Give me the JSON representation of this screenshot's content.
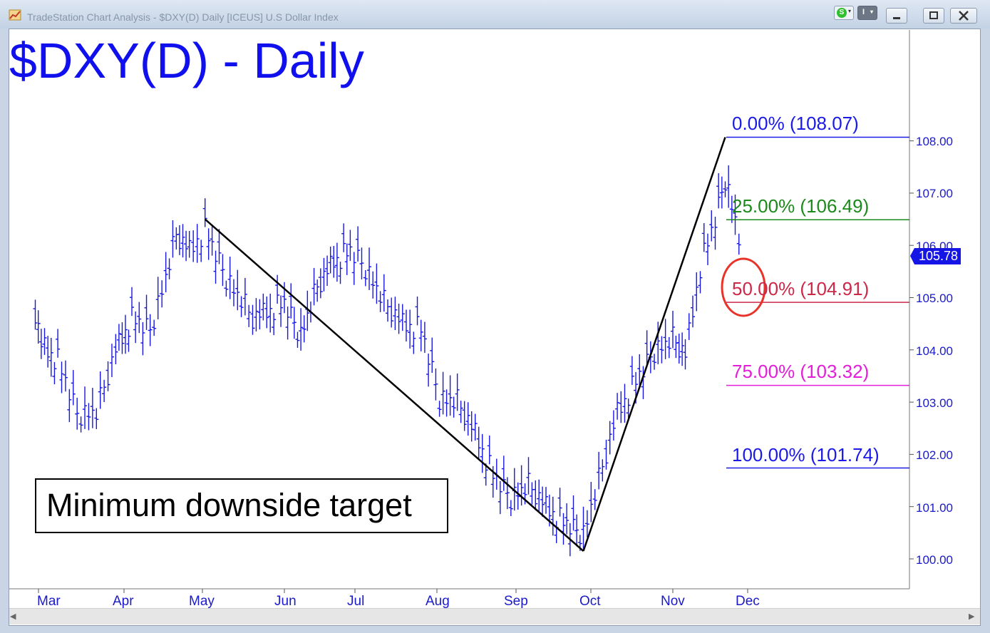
{
  "window": {
    "title": "TradeStation Chart Analysis - $DXY(D) Daily [ICEUS] U.S Dollar Index",
    "s_button": "S",
    "i_button": "I",
    "caret": "▾"
  },
  "chart_data": {
    "type": "ohlc",
    "title": "$DXY(D) - Daily",
    "annotation": "Minimum downside target",
    "last_price": "105.78",
    "ylim": [
      99.5,
      110.2
    ],
    "y_ticks": [
      "100.00",
      "101.00",
      "102.00",
      "103.00",
      "104.00",
      "105.00",
      "106.00",
      "107.00",
      "108.00"
    ],
    "x_ticks": [
      "Mar",
      "Apr",
      "May",
      "Jun",
      "Jul",
      "Aug",
      "Sep",
      "Oct",
      "Nov",
      "Dec"
    ],
    "fib_levels": [
      {
        "label": "0.00% (108.07)",
        "value": 108.07,
        "color": "#1a1ae6"
      },
      {
        "label": "25.00% (106.49)",
        "value": 106.49,
        "color": "#1b8a1b"
      },
      {
        "label": "50.00% (104.91)",
        "value": 104.91,
        "color": "#cc2848"
      },
      {
        "label": "75.00% (103.32)",
        "value": 103.32,
        "color": "#e21ed8"
      },
      {
        "label": "100.00% (101.74)",
        "value": 101.74,
        "color": "#1a1ae6"
      }
    ],
    "swing_points": [
      {
        "date": "May 2",
        "value": 106.5
      },
      {
        "date": "Sep 28",
        "value": 100.15
      },
      {
        "date": "Nov 22",
        "value": 108.07
      }
    ],
    "price_path": [
      {
        "date": "Feb 22",
        "value": 104.7
      },
      {
        "date": "Mar 2",
        "value": 104.1
      },
      {
        "date": "Mar 8",
        "value": 103.8
      },
      {
        "date": "Mar 15",
        "value": 102.8
      },
      {
        "date": "Mar 22",
        "value": 102.8
      },
      {
        "date": "Mar 29",
        "value": 104.0
      },
      {
        "date": "Apr 4",
        "value": 104.6
      },
      {
        "date": "Apr 11",
        "value": 104.4
      },
      {
        "date": "Apr 17",
        "value": 105.4
      },
      {
        "date": "Apr 21",
        "value": 106.2
      },
      {
        "date": "Apr 26",
        "value": 105.9
      },
      {
        "date": "May 2",
        "value": 106.3
      },
      {
        "date": "May 10",
        "value": 105.4
      },
      {
        "date": "May 20",
        "value": 104.6
      },
      {
        "date": "Jun 1",
        "value": 104.9
      },
      {
        "date": "Jun 8",
        "value": 104.3
      },
      {
        "date": "Jun 15",
        "value": 105.2
      },
      {
        "date": "Jun 22",
        "value": 105.7
      },
      {
        "date": "Jun 29",
        "value": 105.9
      },
      {
        "date": "Jul 5",
        "value": 105.6
      },
      {
        "date": "Jul 12",
        "value": 104.9
      },
      {
        "date": "Jul 19",
        "value": 104.5
      },
      {
        "date": "Jul 26",
        "value": 104.4
      },
      {
        "date": "Aug 2",
        "value": 103.1
      },
      {
        "date": "Aug 9",
        "value": 103.0
      },
      {
        "date": "Aug 16",
        "value": 102.4
      },
      {
        "date": "Aug 23",
        "value": 101.6
      },
      {
        "date": "Aug 30",
        "value": 101.2
      },
      {
        "date": "Sep 6",
        "value": 101.4
      },
      {
        "date": "Sep 13",
        "value": 101.0
      },
      {
        "date": "Sep 20",
        "value": 100.7
      },
      {
        "date": "Sep 28",
        "value": 100.5
      },
      {
        "date": "Oct 4",
        "value": 101.5
      },
      {
        "date": "Oct 11",
        "value": 102.8
      },
      {
        "date": "Oct 18",
        "value": 103.4
      },
      {
        "date": "Oct 25",
        "value": 104.0
      },
      {
        "date": "Nov 1",
        "value": 104.2
      },
      {
        "date": "Nov 6",
        "value": 103.9
      },
      {
        "date": "Nov 12",
        "value": 105.6
      },
      {
        "date": "Nov 18",
        "value": 106.5
      },
      {
        "date": "Nov 22",
        "value": 107.3
      },
      {
        "date": "Nov 26",
        "value": 106.5
      },
      {
        "date": "Nov 29",
        "value": 105.78
      }
    ]
  }
}
